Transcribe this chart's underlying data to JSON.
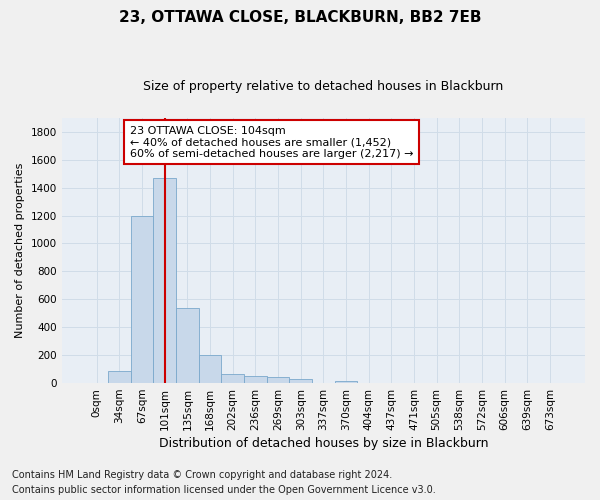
{
  "title1": "23, OTTAWA CLOSE, BLACKBURN, BB2 7EB",
  "title2": "Size of property relative to detached houses in Blackburn",
  "xlabel": "Distribution of detached houses by size in Blackburn",
  "ylabel": "Number of detached properties",
  "bar_labels": [
    "0sqm",
    "34sqm",
    "67sqm",
    "101sqm",
    "135sqm",
    "168sqm",
    "202sqm",
    "236sqm",
    "269sqm",
    "303sqm",
    "337sqm",
    "370sqm",
    "404sqm",
    "437sqm",
    "471sqm",
    "505sqm",
    "538sqm",
    "572sqm",
    "606sqm",
    "639sqm",
    "673sqm"
  ],
  "bar_values": [
    0,
    90,
    1200,
    1470,
    540,
    200,
    65,
    50,
    40,
    30,
    0,
    15,
    0,
    0,
    0,
    0,
    0,
    0,
    0,
    0,
    0
  ],
  "bar_color": "#c8d8ea",
  "bar_edge_color": "#7aa8cc",
  "ylim": [
    0,
    1900
  ],
  "yticks": [
    0,
    200,
    400,
    600,
    800,
    1000,
    1200,
    1400,
    1600,
    1800
  ],
  "annotation_text_line1": "23 OTTAWA CLOSE: 104sqm",
  "annotation_text_line2": "← 40% of detached houses are smaller (1,452)",
  "annotation_text_line3": "60% of semi-detached houses are larger (2,217) →",
  "footer1": "Contains HM Land Registry data © Crown copyright and database right 2024.",
  "footer2": "Contains public sector information licensed under the Open Government Licence v3.0.",
  "grid_color": "#d0dce8",
  "background_color": "#e8eef5",
  "fig_background_color": "#f0f0f0",
  "annotation_box_facecolor": "#ffffff",
  "annotation_box_edgecolor": "#cc0000",
  "vline_color": "#cc0000",
  "vline_x": 3.0,
  "title_fontsize": 11,
  "subtitle_fontsize": 9,
  "ylabel_fontsize": 8,
  "xlabel_fontsize": 9,
  "tick_fontsize": 7.5,
  "footer_fontsize": 7
}
